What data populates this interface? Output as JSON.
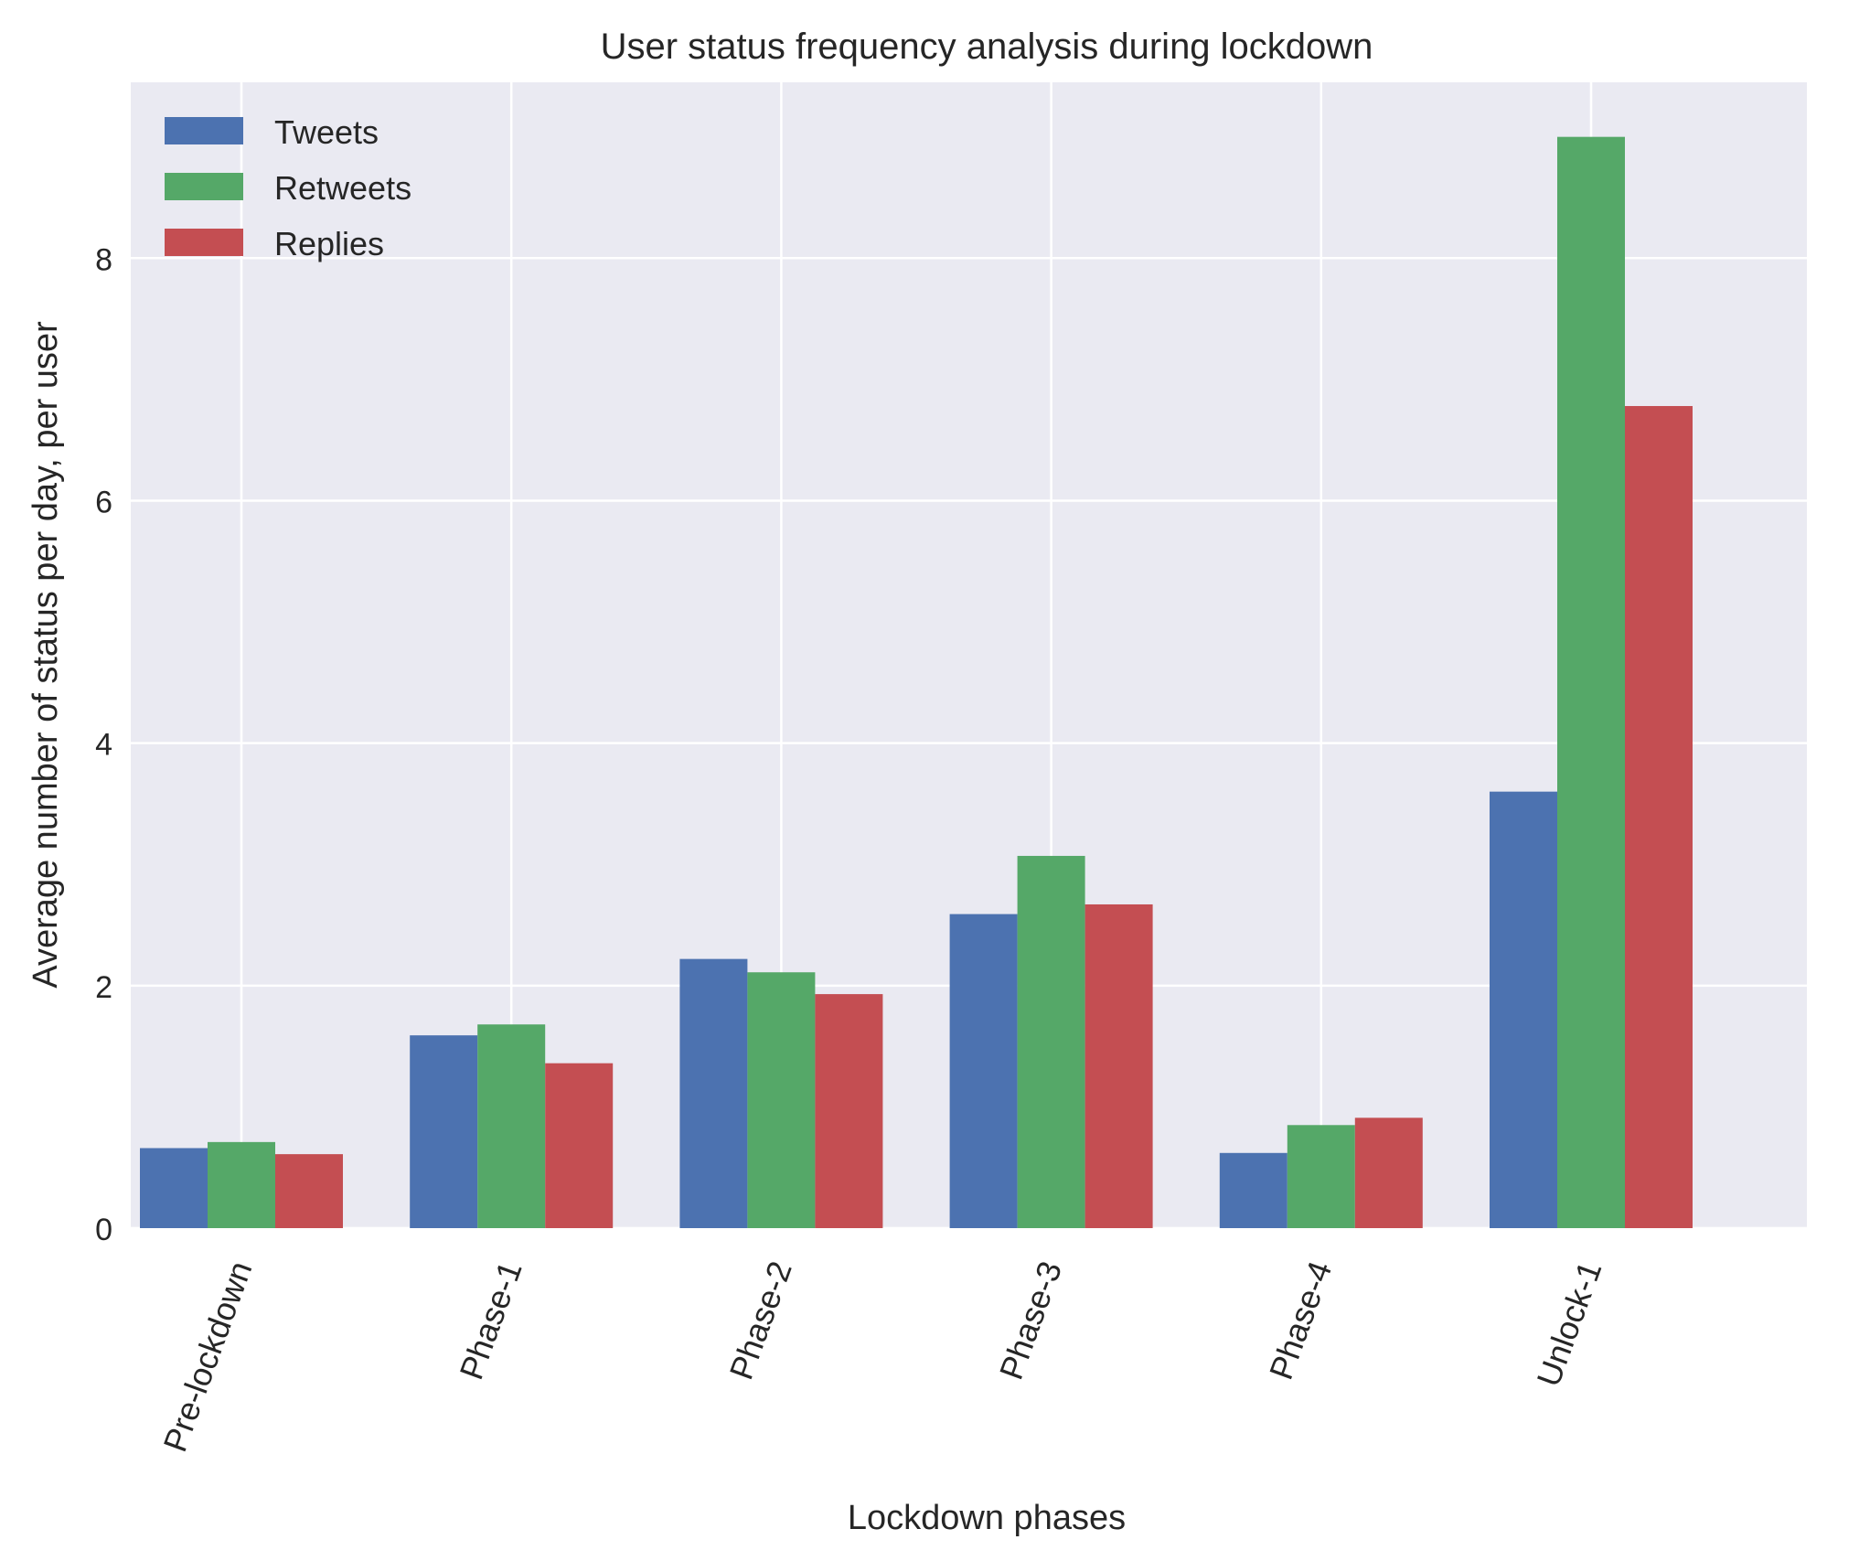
{
  "chart_data": {
    "type": "bar",
    "title": "User status frequency analysis during lockdown",
    "xlabel": "Lockdown phases",
    "ylabel": "Average number of status per day, per user",
    "categories": [
      "Pre-lockdown",
      "Phase-1",
      "Phase-2",
      "Phase-3",
      "Phase-4",
      "Unlock-1"
    ],
    "series": [
      {
        "name": "Tweets",
        "color": "#4c72b0",
        "values": [
          0.66,
          1.59,
          2.22,
          2.59,
          0.62,
          3.6
        ]
      },
      {
        "name": "Retweets",
        "color": "#55a868",
        "values": [
          0.71,
          1.68,
          2.11,
          3.07,
          0.85,
          9.0
        ]
      },
      {
        "name": "Replies",
        "color": "#c44e52",
        "values": [
          0.61,
          1.36,
          1.93,
          2.67,
          0.91,
          6.78
        ]
      }
    ],
    "yticks": [
      0,
      2,
      4,
      6,
      8
    ],
    "ylim": [
      0,
      9.45
    ],
    "grid": true,
    "legend_position": "upper-left",
    "background_color": "#eaeaf2",
    "grid_color": "#ffffff",
    "xtick_rotation": "70°"
  }
}
